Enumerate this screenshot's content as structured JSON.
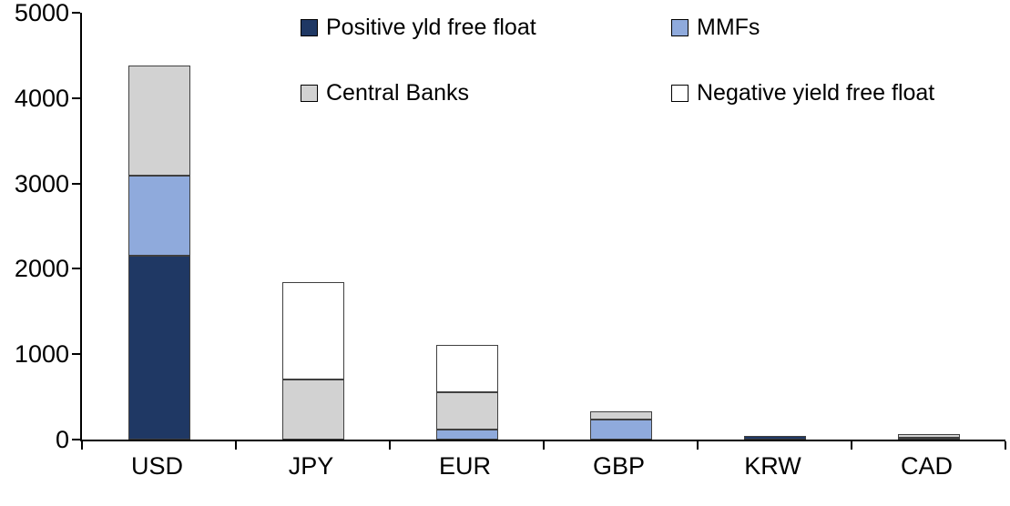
{
  "chart_data": {
    "type": "bar",
    "stacked": true,
    "title": "",
    "xlabel": "",
    "ylabel": "",
    "categories": [
      "USD",
      "JPY",
      "EUR",
      "GBP",
      "KRW",
      "CAD"
    ],
    "series": [
      {
        "name": "Positive yld free float",
        "color": "#1F3864",
        "values": [
          2150,
          0,
          0,
          0,
          45,
          25
        ]
      },
      {
        "name": "MMFs",
        "color": "#8FAADC",
        "values": [
          940,
          0,
          120,
          240,
          0,
          0
        ]
      },
      {
        "name": "Central Banks",
        "color": "#D2D2D2",
        "values": [
          1290,
          700,
          430,
          90,
          0,
          35
        ]
      },
      {
        "name": "Negative yield free float",
        "color": "#FFFFFF",
        "values": [
          0,
          1140,
          560,
          0,
          0,
          0
        ]
      }
    ],
    "totals": [
      4380,
      1840,
      1110,
      330,
      45,
      60
    ],
    "ylim": [
      0,
      5000
    ],
    "ytick_interval": 1000,
    "ytick_labels": [
      "0",
      "1000",
      "2000",
      "3000",
      "4000",
      "5000"
    ],
    "grid": false,
    "legend_position": "top-inside",
    "legend_order": [
      "Positive yld free float",
      "MMFs",
      "Central Banks",
      "Negative yield free float"
    ]
  }
}
